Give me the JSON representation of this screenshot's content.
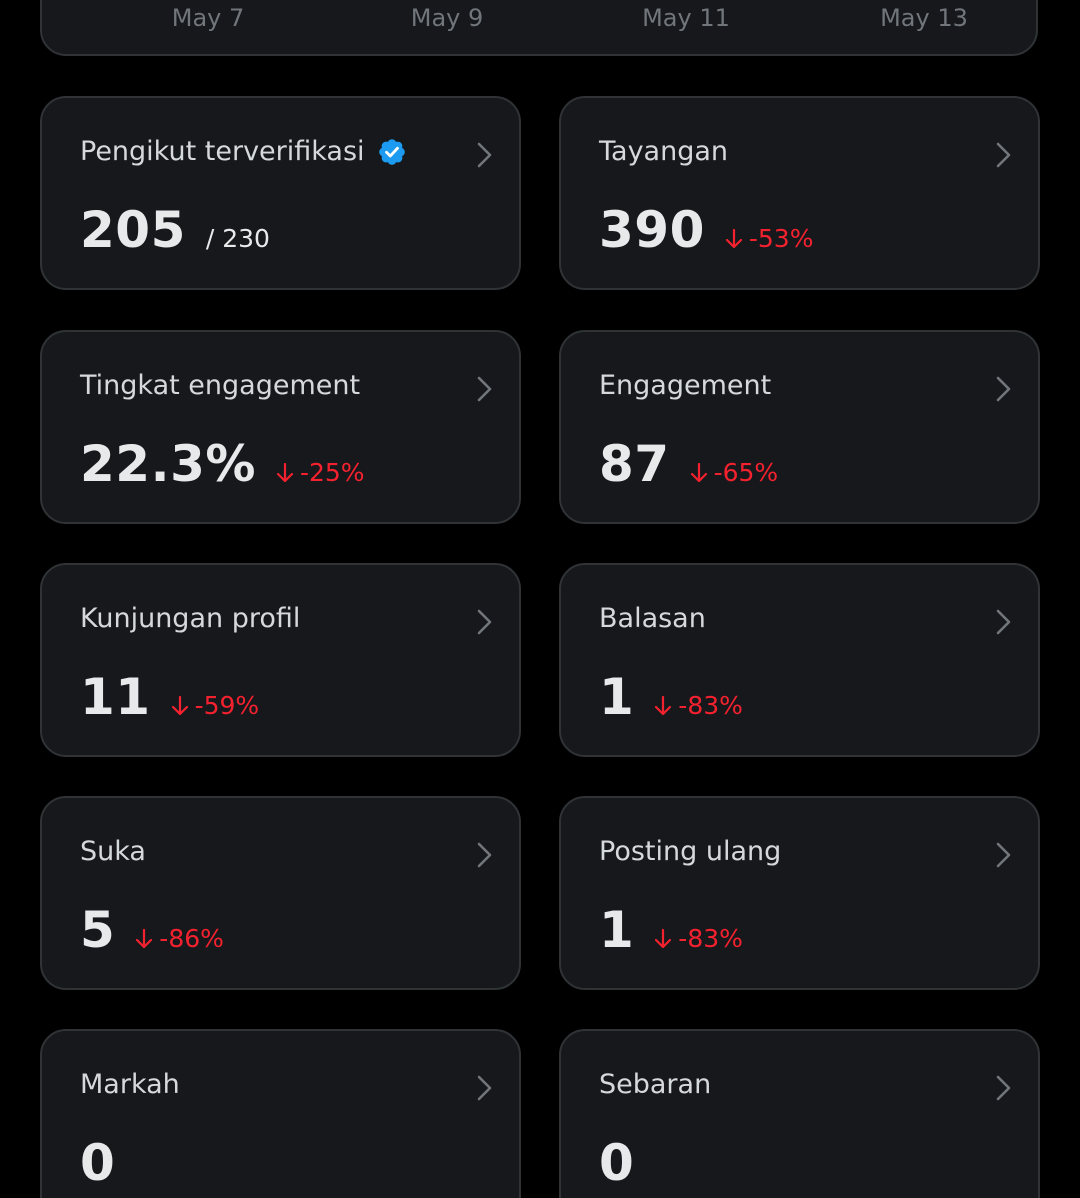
{
  "chart": {
    "x_ticks": [
      "May 7",
      "May 9",
      "May 11",
      "May 13"
    ]
  },
  "colors": {
    "background": "#000000",
    "card": "#16181c",
    "border": "#2f3336",
    "negative": "#f4212e",
    "verified": "#1d9bf0"
  },
  "metrics": [
    {
      "label": "Pengikut terverifikasi",
      "value": "205",
      "of": "/ 230",
      "verified": true,
      "icon": "chevron-right-icon"
    },
    {
      "label": "Tayangan",
      "value": "390",
      "change": "-53%",
      "icon": "chevron-right-icon"
    },
    {
      "label": "Tingkat engagement",
      "value": "22.3%",
      "change": "-25%",
      "icon": "chevron-right-icon"
    },
    {
      "label": "Engagement",
      "value": "87",
      "change": "-65%",
      "icon": "chevron-right-icon"
    },
    {
      "label": "Kunjungan profil",
      "value": "11",
      "change": "-59%",
      "icon": "chevron-right-icon"
    },
    {
      "label": "Balasan",
      "value": "1",
      "change": "-83%",
      "icon": "chevron-right-icon"
    },
    {
      "label": "Suka",
      "value": "5",
      "change": "-86%",
      "icon": "chevron-right-icon"
    },
    {
      "label": "Posting ulang",
      "value": "1",
      "change": "-83%",
      "icon": "chevron-right-icon"
    },
    {
      "label": "Markah",
      "value": "0",
      "icon": "chevron-right-icon"
    },
    {
      "label": "Sebaran",
      "value": "0",
      "icon": "chevron-right-icon"
    }
  ]
}
